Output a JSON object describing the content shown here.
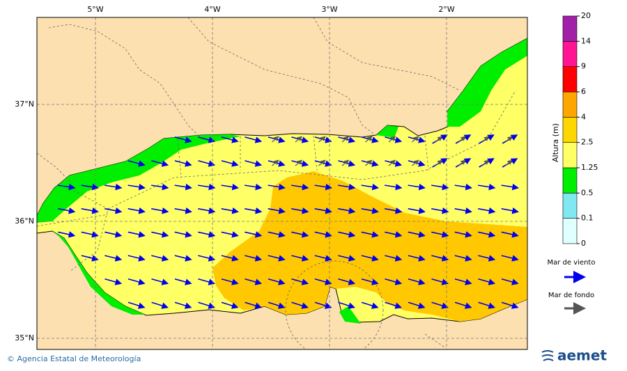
{
  "map": {
    "lon_labels": [
      "5°W",
      "4°W",
      "3°W",
      "2°W"
    ],
    "lat_labels": [
      "37°N",
      "36°N",
      "35°N"
    ],
    "colorbar": {
      "title": "Altura (m)",
      "levels": [
        0,
        0.1,
        0.5,
        1.25,
        2.5,
        4,
        6,
        9,
        14,
        20
      ],
      "colors": [
        "#e0ffff",
        "#80e8f0",
        "#00ee00",
        "#ffff66",
        "#ffd700",
        "#ffa500",
        "#ff0000",
        "#ff1493",
        "#a020a8"
      ]
    },
    "legend": [
      {
        "label": "Mar de viento",
        "color": "#0000ff"
      },
      {
        "label": "Mar de fondo",
        "color": "#555555"
      }
    ],
    "credit": "© Agencia Estatal de Meteorología",
    "logo": "aemet"
  }
}
